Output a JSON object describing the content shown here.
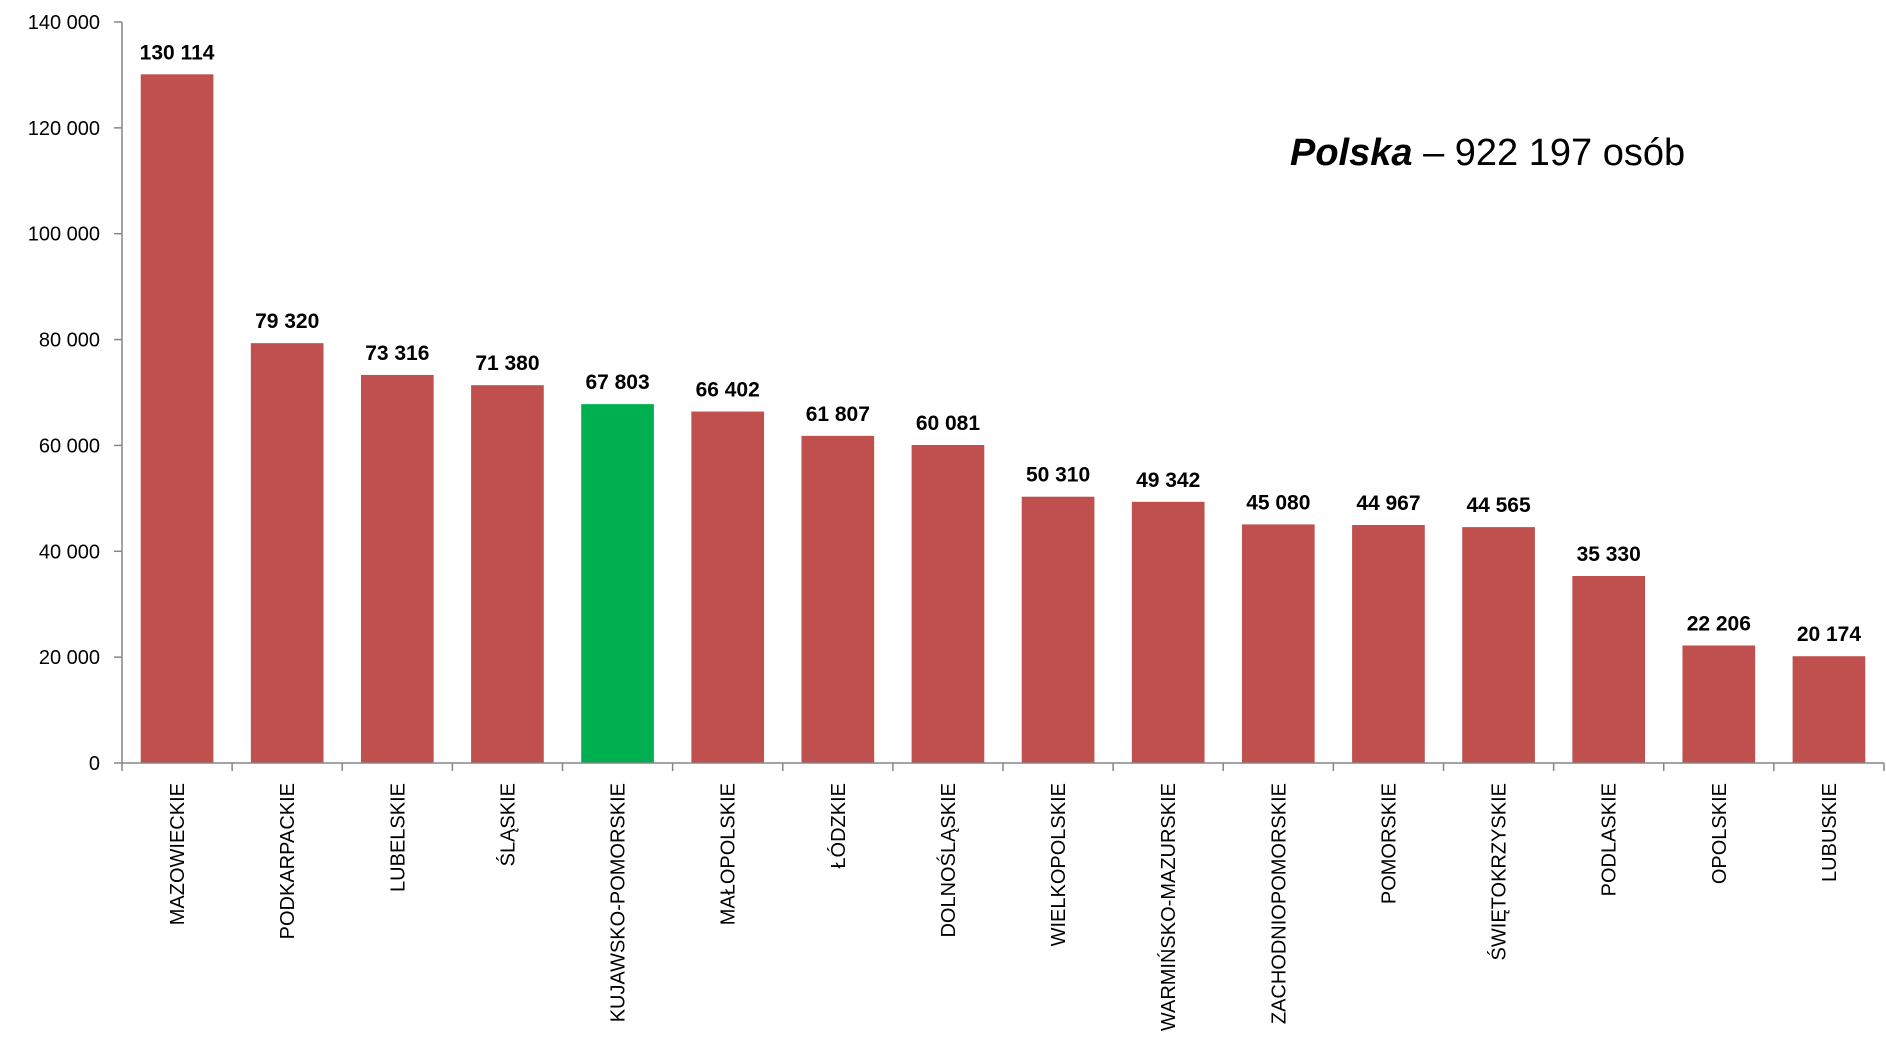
{
  "chart_data": {
    "type": "bar",
    "categories": [
      "MAZOWIECKIE",
      "PODKARPACKIE",
      "LUBELSKIE",
      "ŚLĄSKIE",
      "KUJAWSKO-POMORSKIE",
      "MAŁOPOLSKIE",
      "ŁÓDZKIE",
      "DOLNOŚLĄSKIE",
      "WIELKOPOLSKIE",
      "WARMIŃSKO-MAZURSKIE",
      "ZACHODNIOPOMORSKIE",
      "POMORSKIE",
      "ŚWIĘTOKRZYSKIE",
      "PODLASKIE",
      "OPOLSKIE",
      "LUBUSKIE"
    ],
    "values": [
      130114,
      79320,
      73316,
      71380,
      67803,
      66402,
      61807,
      60081,
      50310,
      49342,
      45080,
      44967,
      44565,
      35330,
      22206,
      20174
    ],
    "data_labels": [
      "130 114",
      "79 320",
      "73 316",
      "71 380",
      "67 803",
      "66 402",
      "61 807",
      "60 081",
      "50 310",
      "49 342",
      "45 080",
      "44 967",
      "44 565",
      "35 330",
      "22 206",
      "20 174"
    ],
    "highlight_index": 4,
    "colors": {
      "bar": "#C0504D",
      "highlight": "#00B050",
      "axis": "#868686"
    },
    "ylim": [
      0,
      140000
    ],
    "yticks": [
      0,
      20000,
      40000,
      60000,
      80000,
      100000,
      120000,
      140000
    ],
    "ytick_labels": [
      "0",
      "20 000",
      "40 000",
      "60 000",
      "80 000",
      "100 000",
      "120 000",
      "140 000"
    ],
    "grid": false,
    "title": "",
    "xlabel": "",
    "ylabel": ""
  },
  "annotation": {
    "strong": "Polska",
    "rest": " – 922 197 osób"
  }
}
